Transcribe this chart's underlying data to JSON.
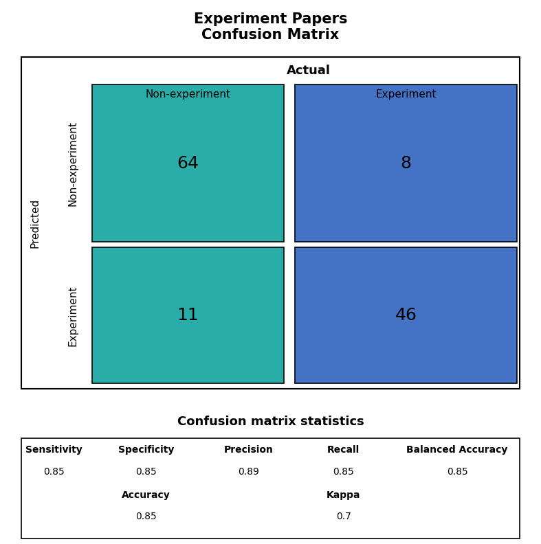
{
  "title_line1": "Experiment Papers",
  "title_line2": "Confusion Matrix",
  "actual_label": "Actual",
  "predicted_label": "Predicted",
  "col_labels": [
    "Non-experiment",
    "Experiment"
  ],
  "row_labels": [
    "Non-experiment",
    "Experiment"
  ],
  "matrix": [
    [
      64,
      8
    ],
    [
      11,
      46
    ]
  ],
  "teal_color": "#2AADA8",
  "blue_color": "#4472C4",
  "stats_title": "Confusion matrix statistics",
  "stats": [
    {
      "label": "Sensitivity",
      "value": "0.85",
      "sub_label": "",
      "sub_value": ""
    },
    {
      "label": "Specificity",
      "value": "0.85",
      "sub_label": "Accuracy",
      "sub_value": "0.85"
    },
    {
      "label": "Precision",
      "value": "0.89",
      "sub_label": "",
      "sub_value": ""
    },
    {
      "label": "Recall",
      "value": "0.85",
      "sub_label": "Kappa",
      "sub_value": "0.7"
    },
    {
      "label": "Balanced Accuracy",
      "value": "0.85",
      "sub_label": "",
      "sub_value": ""
    }
  ],
  "cell_colors": [
    [
      "#2AADA8",
      "#4472C4"
    ],
    [
      "#2AADA8",
      "#4472C4"
    ]
  ],
  "fig_width": 7.87,
  "fig_height": 7.92
}
